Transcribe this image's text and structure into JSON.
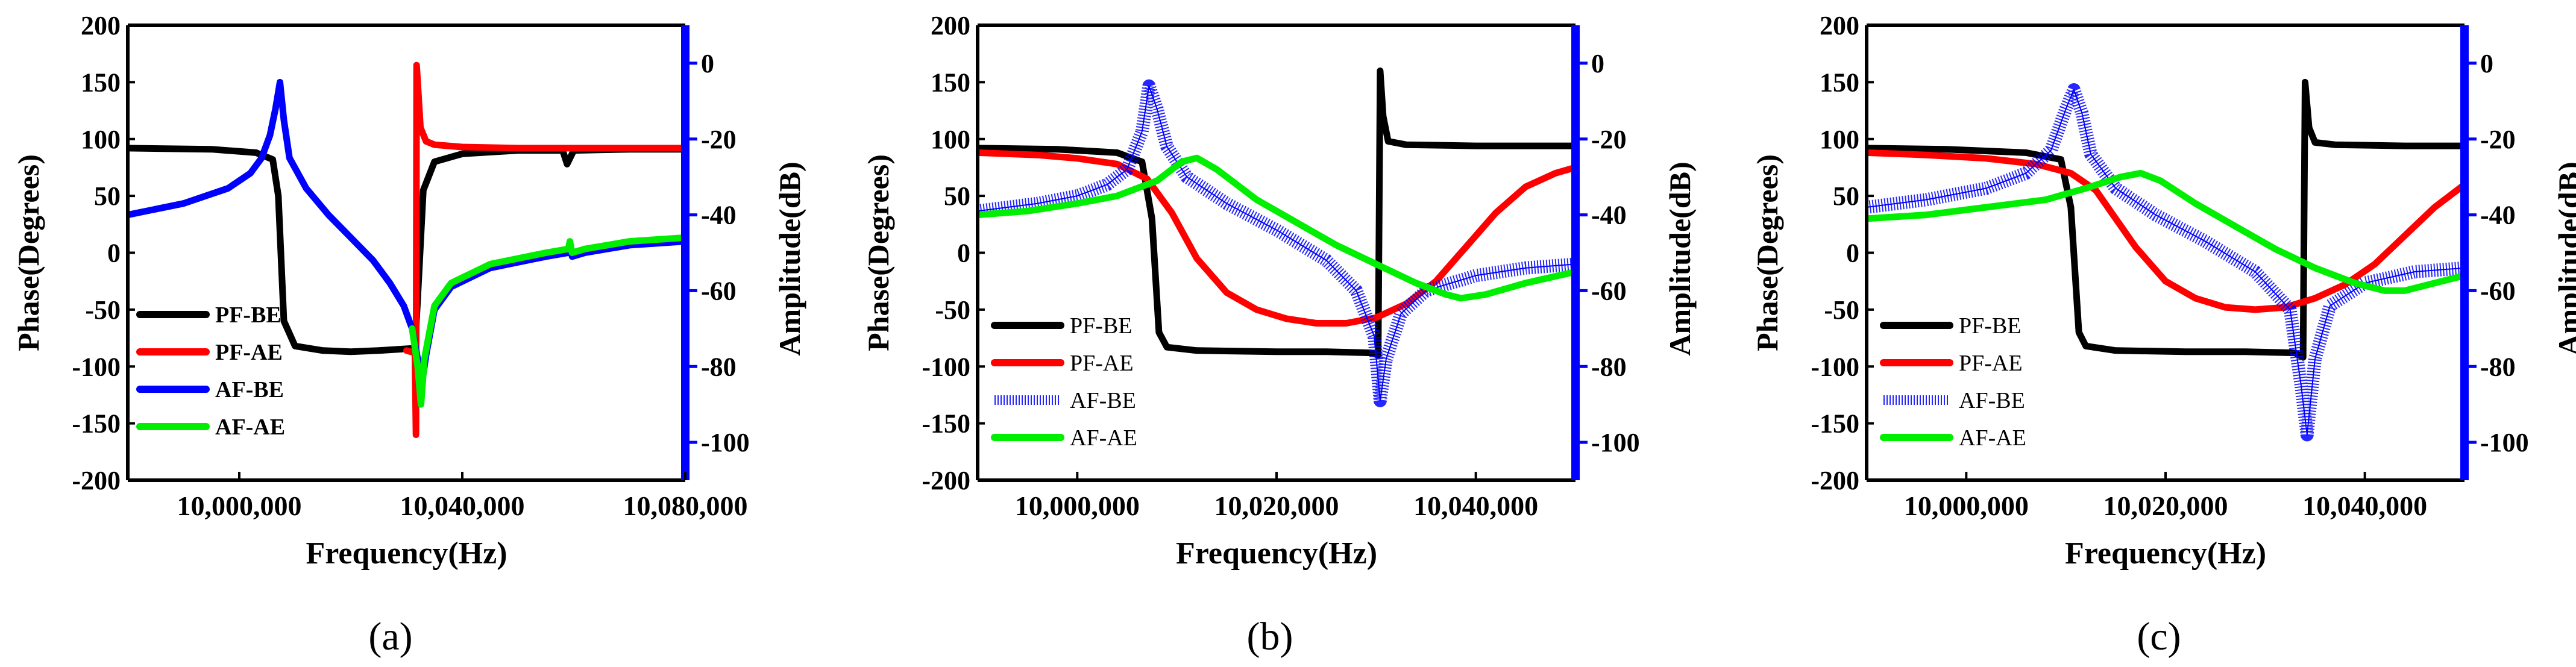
{
  "chart_data": [
    {
      "panel_label": "(a)",
      "type": "line",
      "xlabel": "Frequency(Hz)",
      "ylabel_left": "Phase(Degrees)",
      "ylabel_right": "Amplitude(dB)",
      "xlim": [
        9980000,
        10080000
      ],
      "ylim_left": [
        -200,
        200
      ],
      "ylim_right": [
        -110,
        10
      ],
      "xticks": [
        10000000,
        10040000,
        10080000
      ],
      "xtick_labels": [
        "10,000,000",
        "10,040,000",
        "10,080,000"
      ],
      "yticks_left": [
        -200,
        -150,
        -100,
        -50,
        0,
        50,
        100,
        150,
        200
      ],
      "ytick_labels_left": [
        "-200",
        "-150",
        "-100",
        "-50",
        "0",
        "50",
        "100",
        "150",
        "200"
      ],
      "yticks_right": [
        -100,
        -80,
        -60,
        -40,
        -20,
        0
      ],
      "ytick_labels_right": [
        "-100",
        "-80",
        "-60",
        "-40",
        "-20",
        "0"
      ],
      "legend": [
        "PF-BE",
        "PF-AE",
        "AF-BE",
        "AF-AE"
      ],
      "legend_position": "bottom-left",
      "series": [
        {
          "name": "PF-BE",
          "axis": "left",
          "color": "#000000",
          "style": "solid",
          "x": [
            9980000,
            9995000,
            10003000,
            10006000,
            10007000,
            10008000,
            10010000,
            10015000,
            10020000,
            10025000,
            10031500,
            10032000,
            10033000,
            10035000,
            10040000,
            10050000,
            10058000,
            10058800,
            10060000,
            10070000,
            10080000
          ],
          "y": [
            92,
            91,
            88,
            82,
            50,
            -60,
            -82,
            -86,
            -87,
            -86,
            -84,
            -40,
            55,
            80,
            87,
            90,
            90,
            78,
            90,
            91,
            91
          ]
        },
        {
          "name": "PF-AE",
          "axis": "left",
          "color": "#ff0000",
          "style": "solid",
          "x": [
            10030000,
            10031500,
            10031700,
            10031800,
            10032000,
            10032500,
            10033500,
            10035000,
            10040000,
            10050000,
            10080000
          ],
          "y": [
            -86,
            -88,
            -160,
            165,
            150,
            110,
            98,
            95,
            93,
            92,
            92
          ]
        },
        {
          "name": "AF-BE",
          "axis": "right",
          "color": "#0000ff",
          "style": "solid",
          "x": [
            9980000,
            9990000,
            9998000,
            10002000,
            10004000,
            10005500,
            10006500,
            10007300,
            10008000,
            10009000,
            10012000,
            10016000,
            10020000,
            10024000,
            10027000,
            10029500,
            10031000,
            10032000,
            10032800,
            10033500,
            10035000,
            10038000,
            10045000,
            10055000,
            10059000,
            10059300,
            10059700,
            10062000,
            10070000,
            10080000
          ],
          "y": [
            -40,
            -37,
            -33,
            -29,
            -25,
            -19,
            -12,
            -5,
            -15,
            -25,
            -33,
            -40,
            -46,
            -52,
            -58,
            -64,
            -70,
            -78,
            -84,
            -77,
            -65,
            -59,
            -54,
            -51,
            -50,
            -48,
            -51,
            -50,
            -48,
            -47
          ]
        },
        {
          "name": "AF-AE",
          "axis": "right",
          "color": "#00ee00",
          "style": "solid",
          "x": [
            10031000,
            10032000,
            10032600,
            10033200,
            10035000,
            10038000,
            10045000,
            10055000,
            10059000,
            10059300,
            10059700,
            10062000,
            10070000,
            10080000
          ],
          "y": [
            -70,
            -80,
            -90,
            -78,
            -64,
            -58,
            -53,
            -50,
            -49,
            -47,
            -50,
            -49,
            -47,
            -46
          ]
        }
      ]
    },
    {
      "panel_label": "(b)",
      "type": "line",
      "xlabel": "Frequency(Hz)",
      "ylabel_left": "Phase(Degrees)",
      "ylabel_right": "Amplitude(dB)",
      "xlim": [
        9990000,
        10050000
      ],
      "ylim_left": [
        -200,
        200
      ],
      "ylim_right": [
        -110,
        10
      ],
      "xticks": [
        10000000,
        10020000,
        10040000
      ],
      "xtick_labels": [
        "10,000,000",
        "10,020,000",
        "10,040,000"
      ],
      "yticks_left": [
        -200,
        -150,
        -100,
        -50,
        0,
        50,
        100,
        150,
        200
      ],
      "ytick_labels_left": [
        "-200",
        "-150",
        "-100",
        "-50",
        "0",
        "50",
        "100",
        "150",
        "200"
      ],
      "yticks_right": [
        -100,
        -80,
        -60,
        -40,
        -20,
        0
      ],
      "ytick_labels_right": [
        "-100",
        "-80",
        "-60",
        "-40",
        "-20",
        "0"
      ],
      "legend": [
        "PF-BE",
        "PF-AE",
        "AF-BE",
        "AF-AE"
      ],
      "legend_position": "bottom-left",
      "series": [
        {
          "name": "PF-BE",
          "axis": "left",
          "color": "#000000",
          "style": "solid",
          "x": [
            9990000,
            9998000,
            10004000,
            10006500,
            10007500,
            10008200,
            10009000,
            10012000,
            10020000,
            10025000,
            10029500,
            10030200,
            10030400,
            10030700,
            10031200,
            10033000,
            10040000,
            10050000
          ],
          "y": [
            92,
            91,
            88,
            80,
            30,
            -70,
            -83,
            -86,
            -87,
            -87,
            -88,
            -90,
            160,
            120,
            98,
            95,
            94,
            94
          ]
        },
        {
          "name": "PF-AE",
          "axis": "left",
          "color": "#ff0000",
          "style": "solid",
          "x": [
            9990000,
            9996000,
            10000000,
            10004000,
            10007000,
            10009500,
            10012000,
            10015000,
            10018000,
            10021000,
            10024000,
            10027000,
            10030000,
            10033000,
            10036000,
            10039000,
            10042000,
            10045000,
            10048000,
            10050000
          ],
          "y": [
            88,
            86,
            83,
            78,
            65,
            35,
            -5,
            -35,
            -50,
            -58,
            -62,
            -62,
            -57,
            -45,
            -25,
            5,
            35,
            58,
            70,
            75
          ]
        },
        {
          "name": "AF-BE",
          "axis": "right",
          "color": "#0000ff",
          "style": "hatched",
          "x": [
            9990000,
            9996000,
            10000000,
            10003000,
            10005000,
            10006500,
            10007200,
            10008000,
            10009000,
            10011000,
            10015000,
            10020000,
            10025000,
            10028000,
            10029800,
            10030400,
            10031000,
            10032500,
            10035000,
            10040000,
            10045000,
            10050000
          ],
          "y": [
            -39,
            -37,
            -35,
            -32,
            -28,
            -18,
            -6,
            -12,
            -22,
            -30,
            -37,
            -44,
            -52,
            -60,
            -72,
            -89,
            -78,
            -66,
            -60,
            -56,
            -54,
            -53
          ]
        },
        {
          "name": "AF-AE",
          "axis": "right",
          "color": "#00ee00",
          "style": "solid",
          "x": [
            9990000,
            9995000,
            10000000,
            10004000,
            10008000,
            10010500,
            10012000,
            10014000,
            10018000,
            10022000,
            10026000,
            10030000,
            10034000,
            10037000,
            10038500,
            10041000,
            10045000,
            10050000
          ],
          "y": [
            -40,
            -39,
            -37,
            -35,
            -31,
            -26,
            -25,
            -28,
            -36,
            -42,
            -48,
            -53,
            -58,
            -61,
            -62,
            -61,
            -58,
            -55
          ]
        }
      ]
    },
    {
      "panel_label": "(c)",
      "type": "line",
      "xlabel": "Frequency(Hz)",
      "ylabel_left": "Phase(Degrees)",
      "ylabel_right": "Amplitude(dB)",
      "xlim": [
        9990000,
        10050000
      ],
      "ylim_left": [
        -200,
        200
      ],
      "ylim_right": [
        -110,
        10
      ],
      "xticks": [
        10000000,
        10020000,
        10040000
      ],
      "xtick_labels": [
        "10,000,000",
        "10,020,000",
        "10,040,000"
      ],
      "yticks_left": [
        -200,
        -150,
        -100,
        -50,
        0,
        50,
        100,
        150,
        200
      ],
      "ytick_labels_left": [
        "-200",
        "-150",
        "-100",
        "-50",
        "0",
        "50",
        "100",
        "150",
        "200"
      ],
      "yticks_right": [
        -100,
        -80,
        -60,
        -40,
        -20,
        0
      ],
      "ytick_labels_right": [
        "-100",
        "-80",
        "-60",
        "-40",
        "-20",
        "0"
      ],
      "legend": [
        "PF-BE",
        "PF-AE",
        "AF-BE",
        "AF-AE"
      ],
      "legend_position": "bottom-left",
      "series": [
        {
          "name": "PF-BE",
          "axis": "left",
          "color": "#000000",
          "style": "solid",
          "x": [
            9990000,
            9998000,
            10006000,
            10009500,
            10010500,
            10011300,
            10012000,
            10015000,
            10022000,
            10028000,
            10033000,
            10033800,
            10034000,
            10034400,
            10035000,
            10037000,
            10044000,
            10050000
          ],
          "y": [
            92,
            91,
            88,
            82,
            40,
            -70,
            -82,
            -86,
            -87,
            -87,
            -88,
            -92,
            150,
            110,
            97,
            95,
            94,
            94
          ]
        },
        {
          "name": "PF-AE",
          "axis": "left",
          "color": "#ff0000",
          "style": "solid",
          "x": [
            9990000,
            9996000,
            10002000,
            10007000,
            10010500,
            10013000,
            10015000,
            10017000,
            10020000,
            10023000,
            10026000,
            10029000,
            10032000,
            10035000,
            10038000,
            10041000,
            10044000,
            10047000,
            10050000
          ],
          "y": [
            88,
            86,
            83,
            78,
            70,
            55,
            30,
            5,
            -25,
            -40,
            -48,
            -50,
            -48,
            -40,
            -28,
            -10,
            15,
            40,
            60
          ]
        },
        {
          "name": "AF-BE",
          "axis": "right",
          "color": "#0000ff",
          "style": "hatched",
          "x": [
            9990000,
            9996000,
            10002000,
            10006000,
            10008500,
            10010000,
            10010800,
            10011600,
            10012500,
            10015000,
            10019000,
            10024000,
            10029000,
            10032500,
            10033600,
            10034200,
            10035000,
            10036500,
            10040000,
            10045000,
            10050000
          ],
          "y": [
            -38,
            -36,
            -33,
            -29,
            -23,
            -12,
            -7,
            -13,
            -24,
            -33,
            -40,
            -47,
            -55,
            -65,
            -85,
            -98,
            -78,
            -64,
            -58,
            -55,
            -54
          ]
        },
        {
          "name": "AF-AE",
          "axis": "right",
          "color": "#00ee00",
          "style": "solid",
          "x": [
            9990000,
            9996000,
            10002000,
            10008000,
            10012000,
            10015500,
            10017500,
            10019500,
            10023000,
            10027000,
            10031000,
            10035000,
            10039000,
            10042000,
            10044000,
            10047000,
            10050000
          ],
          "y": [
            -41,
            -40,
            -38,
            -36,
            -33,
            -30,
            -29,
            -31,
            -37,
            -43,
            -49,
            -54,
            -58,
            -60,
            -60,
            -58,
            -56
          ]
        }
      ]
    }
  ]
}
